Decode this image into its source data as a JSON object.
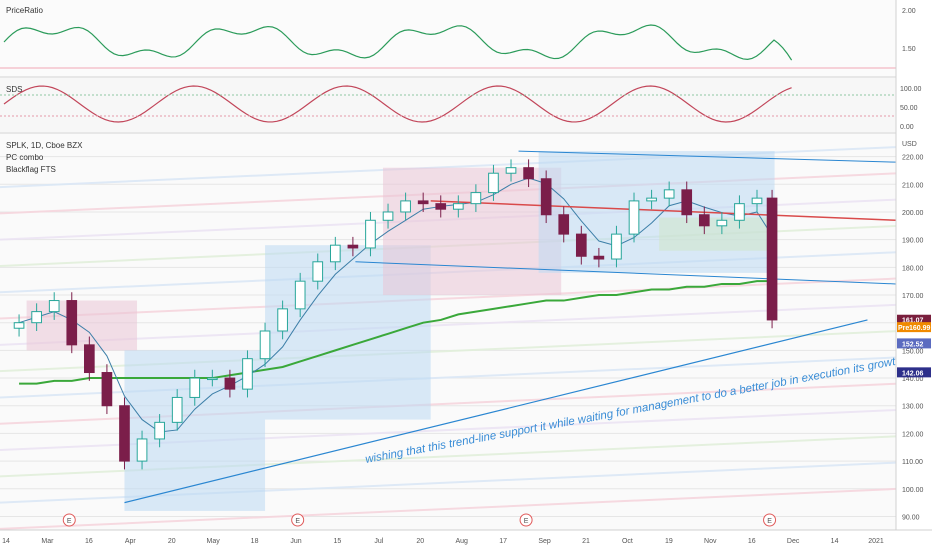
{
  "top_pane": {
    "title": "PriceRatio",
    "ticks": [
      "2.00",
      "1.50"
    ]
  },
  "mid_pane": {
    "title": "SDS",
    "ticks": [
      "100.00",
      "50.00",
      "0.00"
    ]
  },
  "main_pane": {
    "symbol_line": "SPLK, 1D, Cboe BZX",
    "indicators": [
      "PC combo",
      "Blackflag FTS"
    ],
    "price_ticks": [
      "USD",
      "220.00",
      "210.00",
      "200.00",
      "190.00",
      "180.00",
      "170.00",
      "160.00",
      "150.00",
      "140.00",
      "130.00",
      "120.00",
      "110.00",
      "100.00",
      "90.00"
    ],
    "price_tags": [
      {
        "text": "161.07",
        "color": "#7a1f3d"
      },
      {
        "text": "160.99",
        "prefix": "Pre",
        "color": "#f08a00"
      },
      {
        "text": "152.52",
        "color": "#5b6bc0"
      },
      {
        "text": "142.06",
        "color": "#2d2f8a"
      }
    ],
    "annotation": "wishing that this trend-line support it while waiting for management to do a better job in execution its growth plan.",
    "earnings_marker": "E"
  },
  "time_axis": [
    "14",
    "Mar",
    "16",
    "Apr",
    "20",
    "May",
    "18",
    "Jun",
    "15",
    "Jul",
    "20",
    "Aug",
    "17",
    "Sep",
    "21",
    "Oct",
    "19",
    "Nov",
    "16",
    "Dec",
    "14",
    "2021"
  ],
  "colors": {
    "bull": "#27a69a",
    "bear": "#7b1e4a",
    "trend": "#2a86d1",
    "ma_green": "#3aa83a",
    "ma_red": "#d94a4a",
    "cloud_blue": "#bcd8f3",
    "cloud_pink": "#eac4d6"
  },
  "chart_data": {
    "type": "candlestick",
    "title": "SPLK, 1D, Cboe BZX",
    "x": [
      "2020-02-07",
      "2020-02-14",
      "2020-02-21",
      "2020-02-28",
      "2020-03-06",
      "2020-03-13",
      "2020-03-20",
      "2020-03-27",
      "2020-04-03",
      "2020-04-10",
      "2020-04-17",
      "2020-04-24",
      "2020-05-01",
      "2020-05-08",
      "2020-05-15",
      "2020-05-22",
      "2020-05-29",
      "2020-06-05",
      "2020-06-12",
      "2020-06-19",
      "2020-06-26",
      "2020-07-03",
      "2020-07-10",
      "2020-07-17",
      "2020-07-24",
      "2020-07-31",
      "2020-08-07",
      "2020-08-14",
      "2020-08-21",
      "2020-08-28",
      "2020-09-04",
      "2020-09-11",
      "2020-09-18",
      "2020-09-25",
      "2020-10-02",
      "2020-10-09",
      "2020-10-16",
      "2020-10-23",
      "2020-10-30",
      "2020-11-06",
      "2020-11-13",
      "2020-11-20",
      "2020-11-27",
      "2020-12-03"
    ],
    "close": [
      160,
      164,
      168,
      152,
      142,
      130,
      110,
      118,
      124,
      133,
      140,
      140,
      136,
      147,
      157,
      165,
      175,
      182,
      188,
      187,
      197,
      200,
      204,
      203,
      201,
      203,
      207,
      214,
      216,
      212,
      199,
      192,
      184,
      183,
      192,
      204,
      205,
      208,
      199,
      195,
      197,
      203,
      205,
      161
    ],
    "ylim": [
      88,
      226
    ],
    "ylabel": "USD",
    "overlays": {
      "ma_green_long": [
        138,
        138,
        139,
        139,
        140,
        140,
        140,
        140,
        140,
        140,
        140,
        140,
        141,
        142,
        143,
        144,
        146,
        148,
        150,
        152,
        154,
        156,
        158,
        160,
        161,
        163,
        164,
        165,
        166,
        167,
        168,
        168,
        169,
        170,
        170,
        171,
        172,
        172,
        173,
        173,
        174,
        174,
        175,
        175
      ],
      "trend_line": {
        "from": [
          "2020-03-20",
          95
        ],
        "to": [
          "2021-01-10",
          161
        ]
      }
    },
    "grid": true,
    "legend": "top-left"
  }
}
